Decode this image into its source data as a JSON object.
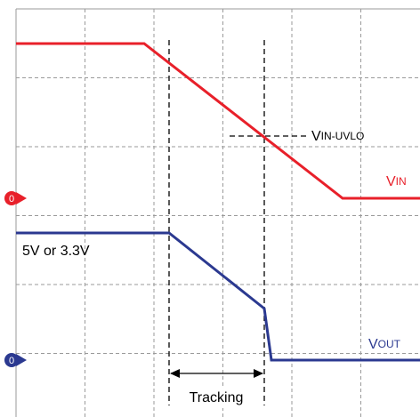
{
  "signals": [
    {
      "name": {
        "main": "V",
        "sub": "IN"
      },
      "marker": "0",
      "color": "#e8202a"
    },
    {
      "name": {
        "main": "V",
        "sub": "OUT"
      },
      "marker": "0",
      "color": "#2b3990"
    }
  ],
  "annotations": {
    "threshold": {
      "main": "V",
      "sub": "IN-UVLO"
    },
    "output_level": "5V or 3.3V",
    "interval": "Tracking"
  }
}
